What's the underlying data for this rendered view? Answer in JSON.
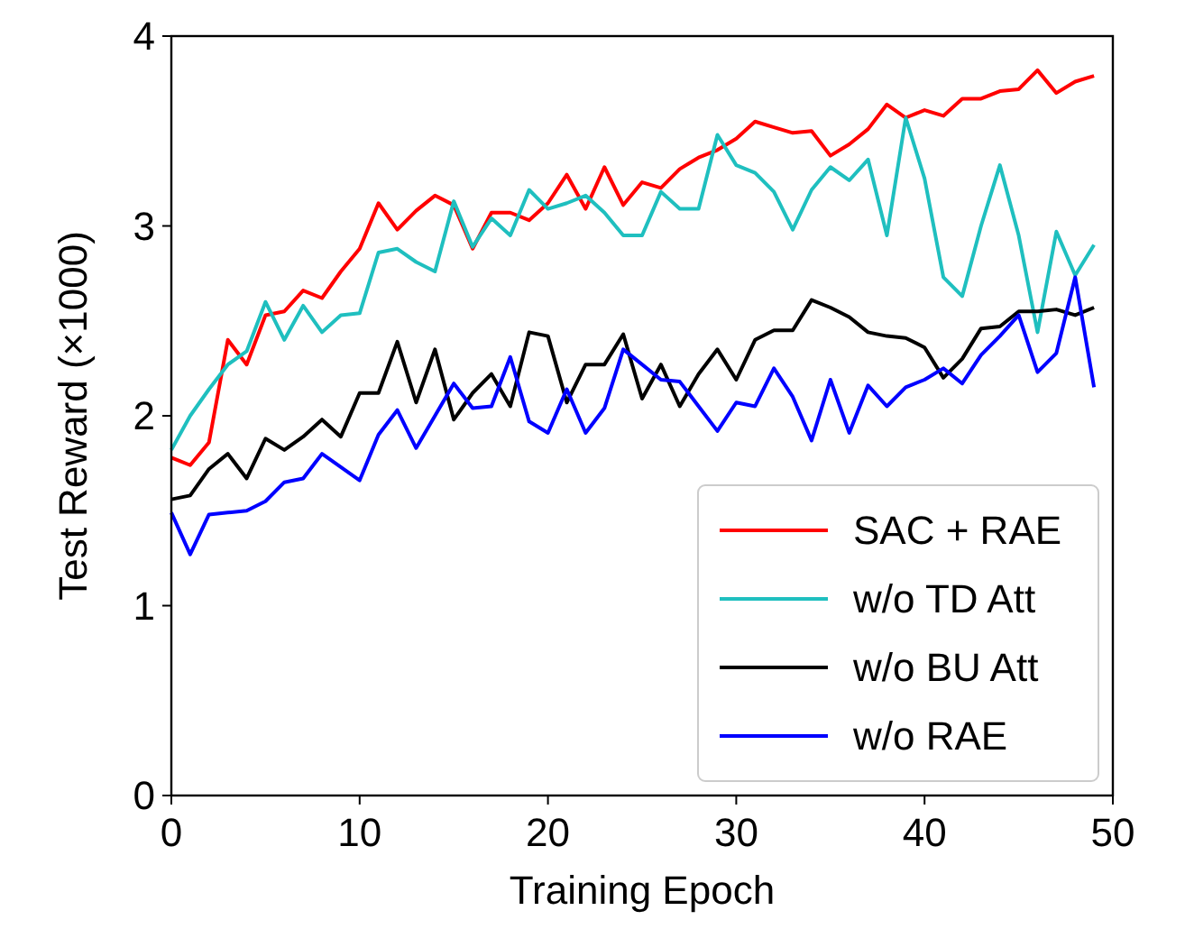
{
  "chart_data": {
    "type": "line",
    "xlabel": "Training Epoch",
    "ylabel": "Test Reward (×1000)",
    "x": [
      0,
      1,
      2,
      3,
      4,
      5,
      6,
      7,
      8,
      9,
      10,
      11,
      12,
      13,
      14,
      15,
      16,
      17,
      18,
      19,
      20,
      21,
      22,
      23,
      24,
      25,
      26,
      27,
      28,
      29,
      30,
      31,
      32,
      33,
      34,
      35,
      36,
      37,
      38,
      39,
      40,
      41,
      42,
      43,
      44,
      45,
      46,
      47,
      48,
      49
    ],
    "xlim": [
      0,
      50
    ],
    "xticks": [
      0,
      10,
      20,
      30,
      40,
      50
    ],
    "ylim": [
      0,
      4
    ],
    "yticks": [
      0,
      1,
      2,
      3,
      4
    ],
    "grid": false,
    "legend": "bottom right",
    "line_style": "solid",
    "marker": "none",
    "series": [
      {
        "name": "SAC + RAE",
        "color": "#ff0000",
        "values": [
          1.78,
          1.74,
          1.86,
          2.4,
          2.27,
          2.53,
          2.55,
          2.66,
          2.62,
          2.76,
          2.88,
          3.12,
          2.98,
          3.08,
          3.16,
          3.11,
          2.88,
          3.07,
          3.07,
          3.03,
          3.12,
          3.27,
          3.09,
          3.31,
          3.11,
          3.23,
          3.2,
          3.3,
          3.36,
          3.4,
          3.46,
          3.55,
          3.52,
          3.49,
          3.5,
          3.37,
          3.43,
          3.51,
          3.64,
          3.57,
          3.61,
          3.58,
          3.67,
          3.67,
          3.71,
          3.72,
          3.82,
          3.7,
          3.76,
          3.79
        ]
      },
      {
        "name": "w/o TD Att",
        "color": "#1fbfbf",
        "values": [
          1.82,
          2.0,
          2.14,
          2.27,
          2.34,
          2.6,
          2.4,
          2.58,
          2.44,
          2.53,
          2.54,
          2.86,
          2.88,
          2.81,
          2.76,
          3.13,
          2.89,
          3.04,
          2.95,
          3.19,
          3.09,
          3.12,
          3.16,
          3.07,
          2.95,
          2.95,
          3.18,
          3.09,
          3.09,
          3.48,
          3.32,
          3.28,
          3.18,
          2.98,
          3.19,
          3.31,
          3.24,
          3.35,
          2.95,
          3.57,
          3.25,
          2.73,
          2.63,
          3.0,
          3.32,
          2.95,
          2.44,
          2.97,
          2.74,
          2.9
        ]
      },
      {
        "name": "w/o BU Att",
        "color": "#000000",
        "values": [
          1.56,
          1.58,
          1.72,
          1.8,
          1.67,
          1.88,
          1.82,
          1.89,
          1.98,
          1.89,
          2.12,
          2.12,
          2.39,
          2.07,
          2.35,
          1.98,
          2.12,
          2.22,
          2.05,
          2.44,
          2.42,
          2.07,
          2.27,
          2.27,
          2.43,
          2.09,
          2.27,
          2.05,
          2.22,
          2.35,
          2.19,
          2.4,
          2.45,
          2.45,
          2.61,
          2.57,
          2.52,
          2.44,
          2.42,
          2.41,
          2.36,
          2.2,
          2.3,
          2.46,
          2.47,
          2.55,
          2.55,
          2.56,
          2.53,
          2.57
        ]
      },
      {
        "name": "w/o RAE",
        "color": "#0000ff",
        "values": [
          1.49,
          1.27,
          1.48,
          1.49,
          1.5,
          1.55,
          1.65,
          1.67,
          1.8,
          1.73,
          1.66,
          1.9,
          2.03,
          1.83,
          2.0,
          2.17,
          2.04,
          2.05,
          2.31,
          1.97,
          1.91,
          2.14,
          1.91,
          2.04,
          2.35,
          2.27,
          2.19,
          2.18,
          2.05,
          1.92,
          2.07,
          2.05,
          2.25,
          2.1,
          1.87,
          2.19,
          1.91,
          2.16,
          2.05,
          2.15,
          2.19,
          2.25,
          2.17,
          2.32,
          2.42,
          2.53,
          2.23,
          2.33,
          2.73,
          2.15
        ]
      }
    ]
  }
}
